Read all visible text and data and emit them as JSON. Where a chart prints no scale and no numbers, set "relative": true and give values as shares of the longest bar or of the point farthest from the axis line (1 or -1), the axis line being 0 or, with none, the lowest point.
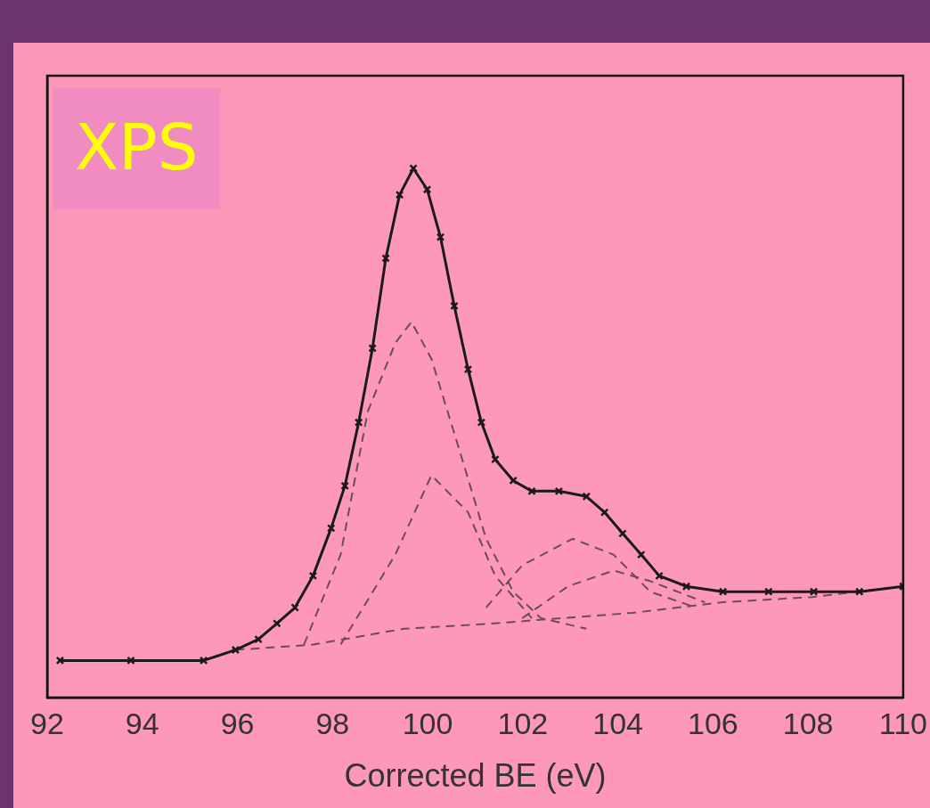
{
  "chart_data": {
    "type": "line",
    "relative": true,
    "xlabel": "Corrected BE (eV)",
    "annotations": [
      "XPS"
    ],
    "xlim": [
      92,
      110
    ],
    "xticks": [
      92,
      94,
      96,
      98,
      100,
      102,
      104,
      106,
      108,
      110
    ],
    "grid": false,
    "legend": false,
    "series": [
      {
        "color": "#1a1a1a",
        "marker": "cross",
        "line_style": "solid",
        "x": [
          92.27,
          93.76,
          95.29,
          95.96,
          96.44,
          96.83,
          97.21,
          97.59,
          97.97,
          98.26,
          98.55,
          98.84,
          99.12,
          99.41,
          99.7,
          99.99,
          100.27,
          100.56,
          100.85,
          101.13,
          101.42,
          101.8,
          102.19,
          102.76,
          103.34,
          103.72,
          104.1,
          104.49,
          104.87,
          105.44,
          106.21,
          107.17,
          108.12,
          109.08,
          110.0
        ],
        "values": [
          0.07,
          0.07,
          0.07,
          0.09,
          0.11,
          0.14,
          0.17,
          0.23,
          0.32,
          0.4,
          0.52,
          0.66,
          0.83,
          0.95,
          1.0,
          0.96,
          0.87,
          0.74,
          0.62,
          0.52,
          0.45,
          0.41,
          0.39,
          0.39,
          0.38,
          0.35,
          0.31,
          0.27,
          0.23,
          0.21,
          0.2,
          0.2,
          0.2,
          0.2,
          0.21
        ]
      },
      {
        "color": "#6e4a5a",
        "marker": "none",
        "line_style": "dashed",
        "x": [
          95.96,
          97.59,
          99.5,
          101.4,
          102.8,
          104.3,
          106.2,
          108.1,
          110.0
        ],
        "values": [
          0.09,
          0.1,
          0.13,
          0.14,
          0.15,
          0.16,
          0.18,
          0.19,
          0.21
        ]
      },
      {
        "color": "#6e4a5a",
        "marker": "none",
        "line_style": "dashed",
        "x": [
          97.4,
          98.17,
          98.74,
          99.32,
          99.66,
          100.08,
          100.66,
          101.23,
          101.8,
          102.38,
          103.34
        ],
        "values": [
          0.1,
          0.27,
          0.54,
          0.67,
          0.71,
          0.64,
          0.47,
          0.3,
          0.2,
          0.15,
          0.13
        ]
      },
      {
        "color": "#6e4a5a",
        "marker": "none",
        "line_style": "dashed",
        "x": [
          98.17,
          99.32,
          100.08,
          100.85,
          101.42,
          102.19
        ],
        "values": [
          0.1,
          0.27,
          0.42,
          0.35,
          0.23,
          0.15
        ]
      },
      {
        "color": "#6e4a5a",
        "marker": "none",
        "line_style": "dashed",
        "x": [
          101.23,
          101.99,
          103.05,
          103.91,
          104.68,
          105.64
        ],
        "values": [
          0.17,
          0.25,
          0.3,
          0.27,
          0.2,
          0.17
        ]
      },
      {
        "color": "#6e4a5a",
        "marker": "none",
        "line_style": "dashed",
        "x": [
          101.99,
          102.95,
          103.91,
          104.68,
          105.83
        ],
        "values": [
          0.15,
          0.21,
          0.24,
          0.22,
          0.18
        ]
      }
    ]
  }
}
